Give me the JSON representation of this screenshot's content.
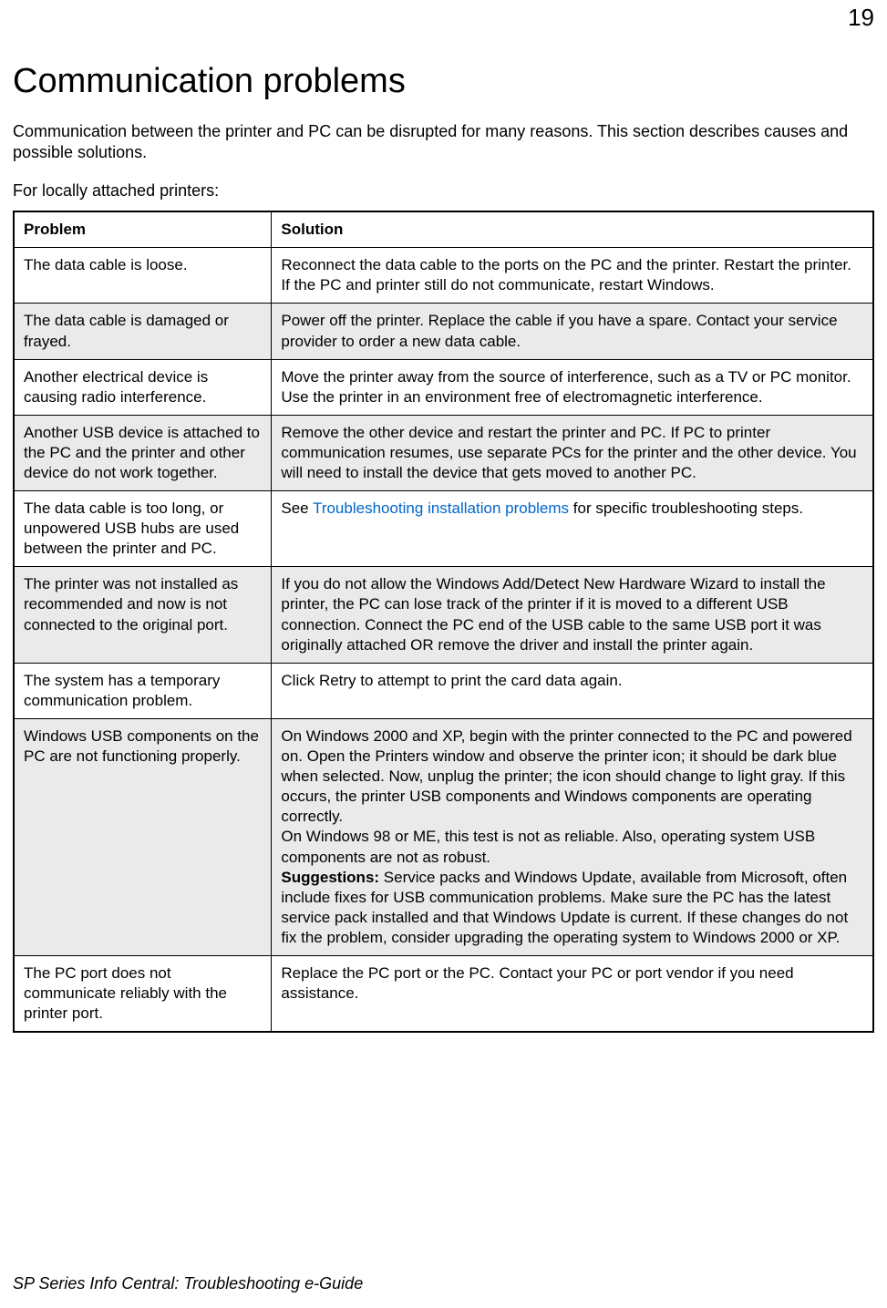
{
  "page_number": "19",
  "heading": "Communication problems",
  "intro": "Communication between the printer and PC can be disrupted for many reasons. This section describes causes and possible solutions.",
  "subintro": "For locally attached printers:",
  "table": {
    "col_problem": "Problem",
    "col_solution": "Solution",
    "rows": [
      {
        "shaded": false,
        "problem": "The data cable is loose.",
        "solution": "Reconnect the data cable to the ports on the PC and the printer. Restart the printer. If the PC and printer still do not communicate, restart Windows."
      },
      {
        "shaded": true,
        "problem": "The data cable is damaged or frayed.",
        "solution": "Power off the printer. Replace the cable if you have a spare. Contact your service provider to order a new data cable."
      },
      {
        "shaded": false,
        "problem": "Another electrical device is causing radio interference.",
        "solution": "Move the printer away from the source of interference, such as a TV or PC monitor. Use the printer in an environment free of electromagnetic interference."
      },
      {
        "shaded": true,
        "problem": "Another USB device is attached to the PC and the printer and other device do not work together.",
        "solution": "Remove the other device and restart the printer and PC. If PC to printer communication resumes, use separate PCs for the printer and the other device. You will need to install the device that gets moved to another PC."
      },
      {
        "shaded": false,
        "problem": "The data cable is too long, or unpowered USB hubs are used between the printer and PC.",
        "solution_pre": "See ",
        "solution_link": "Troubleshooting installation problems",
        "solution_post": " for specific troubleshooting steps."
      },
      {
        "shaded": true,
        "problem": "The printer was not installed as recommended and now is not connected to the original port.",
        "solution": "If you do not allow the Windows Add/Detect New Hardware Wizard to install the printer, the PC can lose track of the printer if it is moved to a different USB connection. Connect the PC end of the USB cable to the same USB port it was originally attached OR remove the driver and install the printer again."
      },
      {
        "shaded": false,
        "problem": "The system has a temporary communication problem.",
        "solution": "Click Retry to attempt to print the card data again."
      },
      {
        "shaded": true,
        "problem": "Windows USB components on the PC are not functioning properly.",
        "solution_p1": "On Windows 2000 and XP, begin with the printer connected to the PC and powered on. Open the Printers window and observe the printer icon; it should be dark blue when selected. Now, unplug the printer; the icon should change to light gray. If this occurs, the printer USB components and Windows components are operating correctly.",
        "solution_p2": "On Windows 98 or ME, this test is not as reliable. Also, operating system USB components are not as robust.",
        "solution_bold": "Suggestions:",
        "solution_p3": " Service packs and Windows Update, available from Microsoft, often include fixes for USB communication problems. Make sure the PC has the latest service pack installed and that Windows Update is current. If these changes do not fix the problem, consider upgrading the operating system to Windows 2000 or XP."
      },
      {
        "shaded": false,
        "problem": "The PC port does not communicate reliably with the printer port.",
        "solution": "Replace the PC port or the PC. Contact your PC or port vendor if you need assistance."
      }
    ]
  },
  "footer": "SP Series Info Central: Troubleshooting e-Guide"
}
